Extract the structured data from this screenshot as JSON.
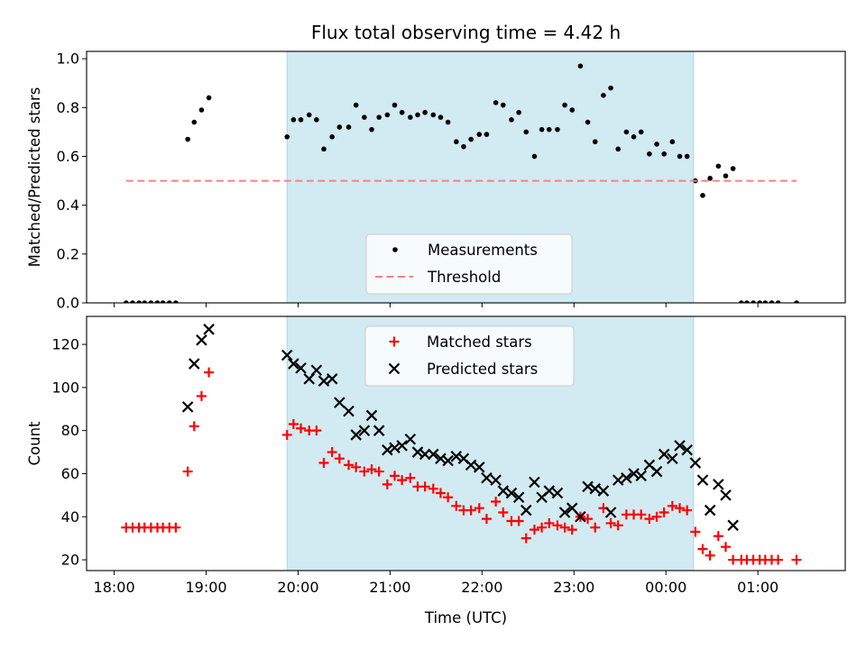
{
  "chart_data": [
    {
      "type": "scatter",
      "title": "Flux total observing time = 4.42 h",
      "xlabel": "",
      "ylabel": "Matched/Predicted stars",
      "ylim": [
        0,
        1.03
      ],
      "yticks": [
        "0.0",
        "0.2",
        "0.4",
        "0.6",
        "0.8",
        "1.0"
      ],
      "ytick_values": [
        0,
        0.2,
        0.4,
        0.6,
        0.8,
        1.0
      ],
      "xlim_hours": [
        17.7,
        25.95
      ],
      "xticks_hours": [
        18,
        19,
        20,
        21,
        22,
        23,
        24,
        25
      ],
      "xtick_labels": [],
      "shaded_span_hours": [
        19.88,
        24.3
      ],
      "shade_color": "#add8e6",
      "legend_loc": "lower center",
      "series": [
        {
          "name": "Measurements",
          "marker": "dot",
          "color": "#000000",
          "points": [
            [
              18.13,
              0
            ],
            [
              18.2,
              0
            ],
            [
              18.27,
              0
            ],
            [
              18.33,
              0
            ],
            [
              18.4,
              0
            ],
            [
              18.47,
              0
            ],
            [
              18.53,
              0
            ],
            [
              18.6,
              0
            ],
            [
              18.67,
              0
            ],
            [
              18.8,
              0.67
            ],
            [
              18.87,
              0.74
            ],
            [
              18.95,
              0.79
            ],
            [
              19.03,
              0.84
            ],
            [
              19.88,
              0.68
            ],
            [
              19.95,
              0.75
            ],
            [
              20.03,
              0.75
            ],
            [
              20.12,
              0.77
            ],
            [
              20.2,
              0.75
            ],
            [
              20.28,
              0.63
            ],
            [
              20.37,
              0.68
            ],
            [
              20.45,
              0.72
            ],
            [
              20.55,
              0.72
            ],
            [
              20.63,
              0.81
            ],
            [
              20.72,
              0.76
            ],
            [
              20.8,
              0.71
            ],
            [
              20.88,
              0.76
            ],
            [
              20.97,
              0.77
            ],
            [
              21.05,
              0.81
            ],
            [
              21.13,
              0.78
            ],
            [
              21.22,
              0.76
            ],
            [
              21.3,
              0.77
            ],
            [
              21.38,
              0.78
            ],
            [
              21.47,
              0.77
            ],
            [
              21.55,
              0.76
            ],
            [
              21.63,
              0.74
            ],
            [
              21.72,
              0.66
            ],
            [
              21.8,
              0.64
            ],
            [
              21.88,
              0.67
            ],
            [
              21.97,
              0.69
            ],
            [
              22.05,
              0.69
            ],
            [
              22.15,
              0.82
            ],
            [
              22.23,
              0.81
            ],
            [
              22.32,
              0.75
            ],
            [
              22.4,
              0.78
            ],
            [
              22.48,
              0.7
            ],
            [
              22.57,
              0.6
            ],
            [
              22.65,
              0.71
            ],
            [
              22.73,
              0.71
            ],
            [
              22.82,
              0.71
            ],
            [
              22.9,
              0.81
            ],
            [
              22.98,
              0.79
            ],
            [
              23.07,
              0.97
            ],
            [
              23.15,
              0.74
            ],
            [
              23.23,
              0.66
            ],
            [
              23.32,
              0.85
            ],
            [
              23.4,
              0.88
            ],
            [
              23.48,
              0.63
            ],
            [
              23.57,
              0.7
            ],
            [
              23.65,
              0.68
            ],
            [
              23.73,
              0.7
            ],
            [
              23.82,
              0.61
            ],
            [
              23.9,
              0.65
            ],
            [
              23.98,
              0.61
            ],
            [
              24.07,
              0.66
            ],
            [
              24.15,
              0.6
            ],
            [
              24.23,
              0.6
            ],
            [
              24.32,
              0.5
            ],
            [
              24.4,
              0.44
            ],
            [
              24.48,
              0.51
            ],
            [
              24.57,
              0.56
            ],
            [
              24.65,
              0.52
            ],
            [
              24.73,
              0.55
            ],
            [
              24.82,
              0
            ],
            [
              24.88,
              0
            ],
            [
              24.95,
              0
            ],
            [
              25.02,
              0
            ],
            [
              25.08,
              0
            ],
            [
              25.15,
              0
            ],
            [
              25.22,
              0
            ],
            [
              25.42,
              0
            ]
          ]
        },
        {
          "name": "Threshold",
          "marker": "dashed-line",
          "color": "#ff7f7f",
          "points": [
            [
              18.13,
              0.5
            ],
            [
              25.42,
              0.5
            ]
          ]
        }
      ]
    },
    {
      "type": "scatter",
      "title": "",
      "xlabel": "Time (UTC)",
      "ylabel": "Count",
      "ylim": [
        15,
        133
      ],
      "yticks": [
        "20",
        "40",
        "60",
        "80",
        "100",
        "120"
      ],
      "ytick_values": [
        20,
        40,
        60,
        80,
        100,
        120
      ],
      "xlim_hours": [
        17.7,
        25.95
      ],
      "xticks_hours": [
        18,
        19,
        20,
        21,
        22,
        23,
        24,
        25
      ],
      "xtick_labels": [
        "18:00",
        "19:00",
        "20:00",
        "21:00",
        "22:00",
        "23:00",
        "00:00",
        "01:00"
      ],
      "shaded_span_hours": [
        19.88,
        24.3
      ],
      "shade_color": "#add8e6",
      "legend_loc": "upper center",
      "series": [
        {
          "name": "Matched stars",
          "marker": "plus",
          "color": "#ff0000",
          "points": [
            [
              18.13,
              35
            ],
            [
              18.2,
              35
            ],
            [
              18.27,
              35
            ],
            [
              18.33,
              35
            ],
            [
              18.4,
              35
            ],
            [
              18.47,
              35
            ],
            [
              18.53,
              35
            ],
            [
              18.6,
              35
            ],
            [
              18.67,
              35
            ],
            [
              18.8,
              61
            ],
            [
              18.87,
              82
            ],
            [
              18.95,
              96
            ],
            [
              19.03,
              107
            ],
            [
              19.88,
              78
            ],
            [
              19.95,
              83
            ],
            [
              20.03,
              81
            ],
            [
              20.12,
              80
            ],
            [
              20.2,
              80
            ],
            [
              20.28,
              65
            ],
            [
              20.37,
              70
            ],
            [
              20.45,
              67
            ],
            [
              20.55,
              64
            ],
            [
              20.63,
              63
            ],
            [
              20.72,
              61
            ],
            [
              20.8,
              62
            ],
            [
              20.88,
              61
            ],
            [
              20.97,
              55
            ],
            [
              21.05,
              59
            ],
            [
              21.13,
              57
            ],
            [
              21.22,
              58
            ],
            [
              21.3,
              54
            ],
            [
              21.38,
              54
            ],
            [
              21.47,
              53
            ],
            [
              21.55,
              51
            ],
            [
              21.63,
              49
            ],
            [
              21.72,
              45
            ],
            [
              21.8,
              43
            ],
            [
              21.88,
              43
            ],
            [
              21.97,
              44
            ],
            [
              22.05,
              39
            ],
            [
              22.15,
              47
            ],
            [
              22.23,
              42
            ],
            [
              22.32,
              38
            ],
            [
              22.4,
              38
            ],
            [
              22.48,
              30
            ],
            [
              22.57,
              34
            ],
            [
              22.65,
              35
            ],
            [
              22.73,
              37
            ],
            [
              22.82,
              36
            ],
            [
              22.9,
              35
            ],
            [
              22.98,
              34
            ],
            [
              23.07,
              40
            ],
            [
              23.15,
              39
            ],
            [
              23.23,
              35
            ],
            [
              23.32,
              44
            ],
            [
              23.4,
              37
            ],
            [
              23.48,
              36
            ],
            [
              23.57,
              41
            ],
            [
              23.65,
              41
            ],
            [
              23.73,
              41
            ],
            [
              23.82,
              39
            ],
            [
              23.9,
              40
            ],
            [
              23.98,
              42
            ],
            [
              24.07,
              45
            ],
            [
              24.15,
              44
            ],
            [
              24.23,
              43
            ],
            [
              24.32,
              33
            ],
            [
              24.4,
              25
            ],
            [
              24.48,
              22
            ],
            [
              24.57,
              31
            ],
            [
              24.65,
              26
            ],
            [
              24.73,
              20
            ],
            [
              24.82,
              20
            ],
            [
              24.88,
              20
            ],
            [
              24.95,
              20
            ],
            [
              25.02,
              20
            ],
            [
              25.08,
              20
            ],
            [
              25.15,
              20
            ],
            [
              25.22,
              20
            ],
            [
              25.42,
              20
            ]
          ]
        },
        {
          "name": "Predicted stars",
          "marker": "x",
          "color": "#000000",
          "points": [
            [
              18.8,
              91
            ],
            [
              18.87,
              111
            ],
            [
              18.95,
              122
            ],
            [
              19.03,
              127
            ],
            [
              19.88,
              115
            ],
            [
              19.95,
              111
            ],
            [
              20.03,
              109
            ],
            [
              20.12,
              104
            ],
            [
              20.2,
              108
            ],
            [
              20.28,
              103
            ],
            [
              20.37,
              104
            ],
            [
              20.45,
              93
            ],
            [
              20.55,
              89
            ],
            [
              20.63,
              78
            ],
            [
              20.72,
              80
            ],
            [
              20.8,
              87
            ],
            [
              20.88,
              80
            ],
            [
              20.97,
              71
            ],
            [
              21.05,
              72
            ],
            [
              21.13,
              73
            ],
            [
              21.22,
              76
            ],
            [
              21.3,
              70
            ],
            [
              21.38,
              69
            ],
            [
              21.47,
              69
            ],
            [
              21.55,
              67
            ],
            [
              21.63,
              66
            ],
            [
              21.72,
              68
            ],
            [
              21.8,
              67
            ],
            [
              21.88,
              64
            ],
            [
              21.97,
              63
            ],
            [
              22.05,
              58
            ],
            [
              22.15,
              57
            ],
            [
              22.23,
              52
            ],
            [
              22.32,
              51
            ],
            [
              22.4,
              49
            ],
            [
              22.48,
              43
            ],
            [
              22.57,
              56
            ],
            [
              22.65,
              49
            ],
            [
              22.73,
              52
            ],
            [
              22.82,
              51
            ],
            [
              22.9,
              42
            ],
            [
              22.98,
              44
            ],
            [
              23.07,
              40
            ],
            [
              23.15,
              54
            ],
            [
              23.23,
              53
            ],
            [
              23.32,
              52
            ],
            [
              23.4,
              42
            ],
            [
              23.48,
              57
            ],
            [
              23.57,
              58
            ],
            [
              23.65,
              60
            ],
            [
              23.73,
              59
            ],
            [
              23.82,
              64
            ],
            [
              23.9,
              61
            ],
            [
              23.98,
              69
            ],
            [
              24.07,
              67
            ],
            [
              24.15,
              73
            ],
            [
              24.23,
              71
            ],
            [
              24.32,
              65
            ],
            [
              24.4,
              57
            ],
            [
              24.48,
              43
            ],
            [
              24.57,
              55
            ],
            [
              24.65,
              50
            ],
            [
              24.73,
              36
            ]
          ]
        }
      ]
    }
  ]
}
